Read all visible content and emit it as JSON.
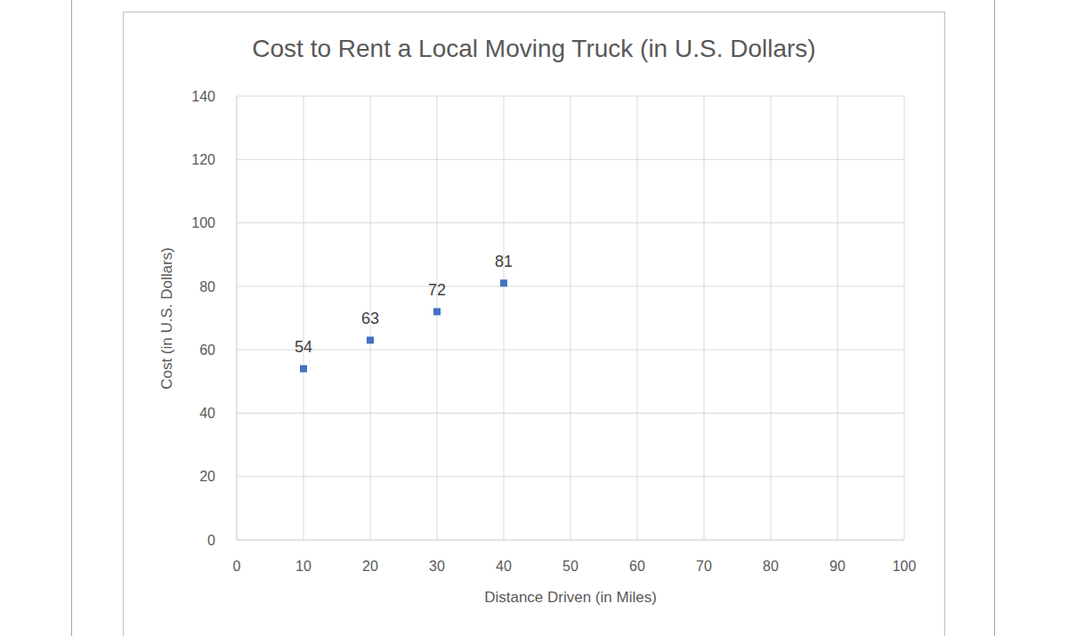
{
  "chart_data": {
    "type": "scatter",
    "title": "Cost to Rent a Local Moving Truck (in U.S. Dollars)",
    "x_label": "Distance Driven (in Miles)",
    "y_label": "Cost (in U.S. Dollars)",
    "x": [
      10,
      20,
      30,
      40
    ],
    "values": [
      54,
      63,
      72,
      81
    ],
    "color": "#4472c4",
    "marker": "square",
    "xlim": [
      0,
      100
    ],
    "xticks": [
      0,
      10,
      20,
      30,
      40,
      50,
      60,
      70,
      80,
      90,
      100
    ],
    "ylim": [
      0,
      140
    ],
    "yticks": [
      0,
      20,
      40,
      60,
      80,
      100,
      120,
      140
    ],
    "grid": true,
    "data_labels": true
  }
}
